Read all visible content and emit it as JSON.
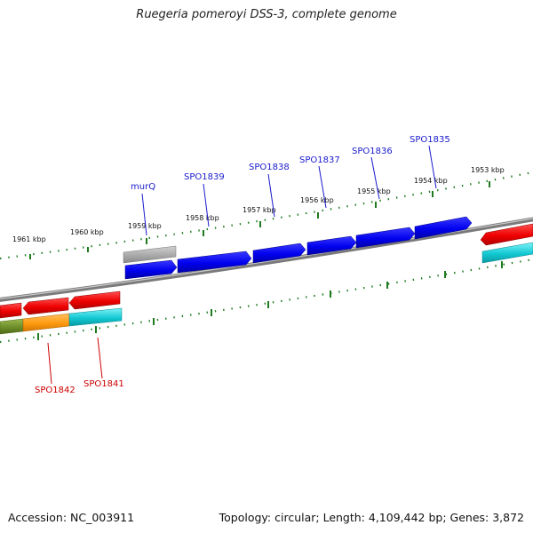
{
  "title": "Ruegeria pomeroyi DSS-3, complete genome",
  "footer": {
    "accession": "Accession: NC_003911",
    "summary": "Topology: circular; Length: 4,109,442 bp; Genes: 3,872"
  },
  "scale_labels": [
    "1961 kbp",
    "1960 kbp",
    "1959 kbp",
    "1958 kbp",
    "1957 kbp",
    "1956 kbp",
    "1955 kbp",
    "1954 kbp",
    "1953 kbp"
  ],
  "genes_forward_strand": [
    "murQ",
    "SPO1839",
    "SPO1838",
    "SPO1837",
    "SPO1836",
    "SPO1835"
  ],
  "genes_reverse_strand": [
    "SPO1842",
    "SPO1841"
  ],
  "colors": {
    "backbone": "#7a7a7a",
    "tick": "#1f7a1f",
    "forward_gene": "#0000ee",
    "forward_label": "#1a1acc",
    "reverse_gene": "#ee0000",
    "reverse_label": "#cc0000",
    "grey_gene": "#a9a9a9",
    "cyan": "#12c8d2",
    "orange": "#ff9a10",
    "olive": "#6e8e2a"
  }
}
